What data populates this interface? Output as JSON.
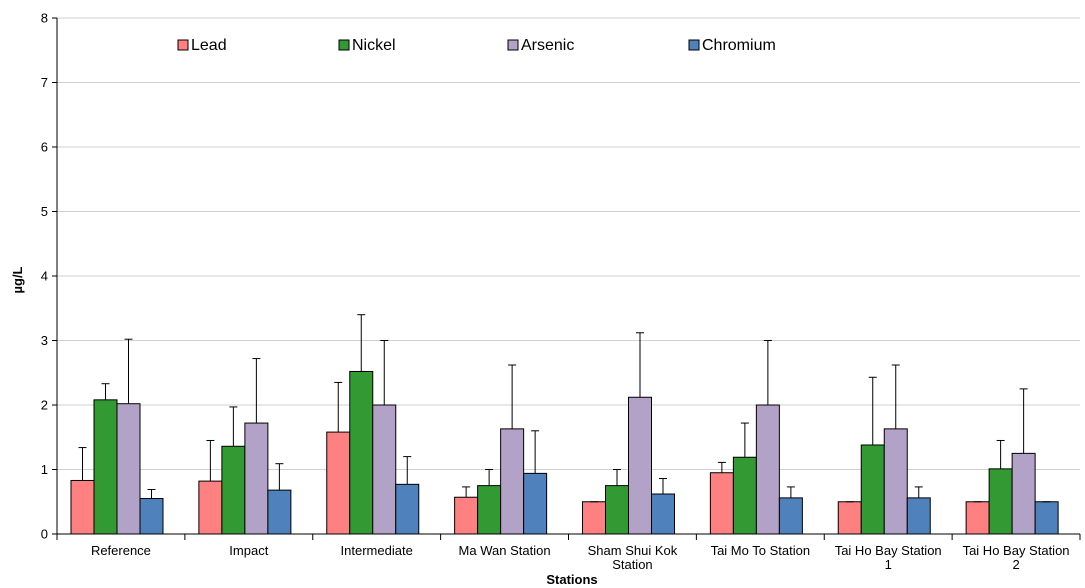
{
  "chart_data": {
    "type": "bar",
    "title": "",
    "xlabel": "Stations",
    "ylabel": "µg/L",
    "ylim": [
      0,
      8
    ],
    "yticks": [
      0,
      1,
      2,
      3,
      4,
      5,
      6,
      7,
      8
    ],
    "grid": true,
    "legend_position": "top",
    "error_bars": true,
    "categories": [
      [
        "Reference"
      ],
      [
        "Impact"
      ],
      [
        "Intermediate"
      ],
      [
        "Ma Wan Station"
      ],
      [
        "Sham Shui Kok",
        "Station"
      ],
      [
        "Tai Mo To Station"
      ],
      [
        "Tai Ho Bay Station",
        "1"
      ],
      [
        "Tai Ho Bay Station",
        "2"
      ]
    ],
    "series": [
      {
        "name": "Lead",
        "color": "#ff8080",
        "values": [
          0.83,
          0.82,
          1.58,
          0.57,
          0.5,
          0.95,
          0.5,
          0.5
        ],
        "error_upper": [
          1.34,
          1.45,
          2.35,
          0.73,
          0.5,
          1.11,
          0.5,
          0.5
        ]
      },
      {
        "name": "Nickel",
        "color": "#339933",
        "values": [
          2.08,
          1.36,
          2.52,
          0.75,
          0.75,
          1.19,
          1.38,
          1.01
        ],
        "error_upper": [
          2.33,
          1.97,
          3.4,
          1.0,
          1.0,
          1.72,
          2.43,
          1.45
        ]
      },
      {
        "name": "Arsenic",
        "color": "#b3a2c7",
        "values": [
          2.02,
          1.72,
          2.0,
          1.63,
          2.12,
          2.0,
          1.63,
          1.25
        ],
        "error_upper": [
          3.02,
          2.72,
          3.0,
          2.62,
          3.12,
          3.0,
          2.62,
          2.25
        ]
      },
      {
        "name": "Chromium",
        "color": "#4f81bd",
        "values": [
          0.55,
          0.68,
          0.77,
          0.94,
          0.62,
          0.56,
          0.56,
          0.5
        ],
        "error_upper": [
          0.69,
          1.09,
          1.2,
          1.6,
          0.86,
          0.73,
          0.73,
          0.5
        ]
      }
    ]
  }
}
